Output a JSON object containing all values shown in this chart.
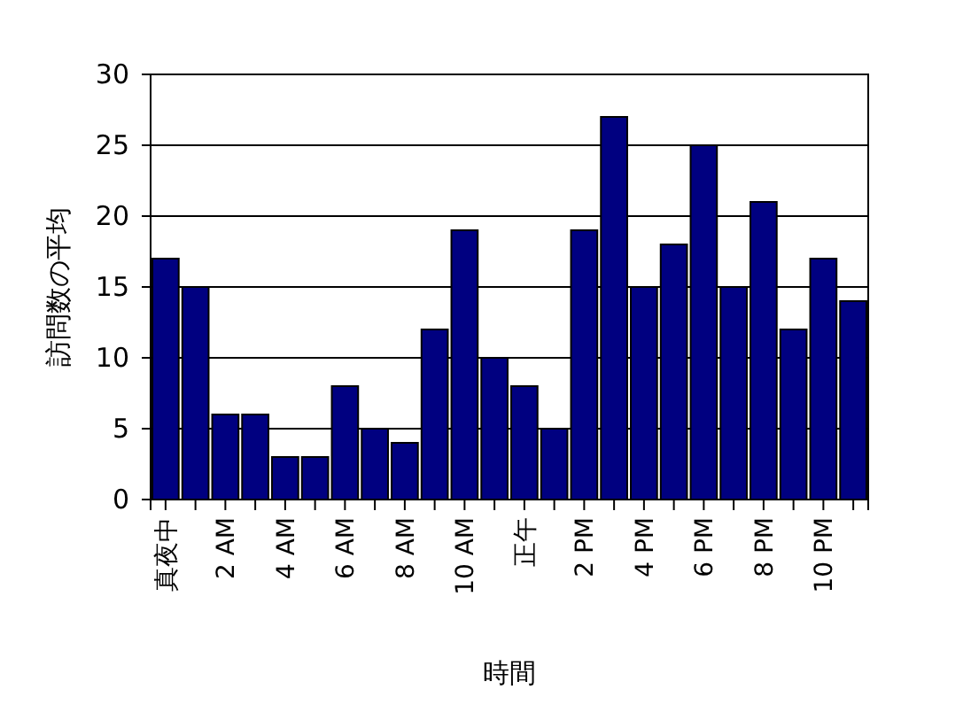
{
  "chart_data": {
    "type": "bar",
    "xlabel": "時間",
    "ylabel": "訪問数の平均",
    "categories": [
      "真夜中",
      null,
      "2 AM",
      null,
      "4 AM",
      null,
      "6 AM",
      null,
      "8 AM",
      null,
      "10 AM",
      null,
      "正午",
      null,
      "2 PM",
      null,
      "4 PM",
      null,
      "6 PM",
      null,
      "8 PM",
      null,
      "10 PM",
      null
    ],
    "values": [
      17,
      15,
      6,
      6,
      3,
      3,
      8,
      5,
      4,
      12,
      19,
      10,
      8,
      5,
      19,
      27,
      15,
      18,
      25,
      15,
      21,
      12,
      17,
      14
    ],
    "color": "#000080",
    "ylim": [
      0,
      30
    ],
    "yticks": [
      0,
      5,
      10,
      15,
      20,
      25,
      30
    ],
    "grid": "y"
  }
}
